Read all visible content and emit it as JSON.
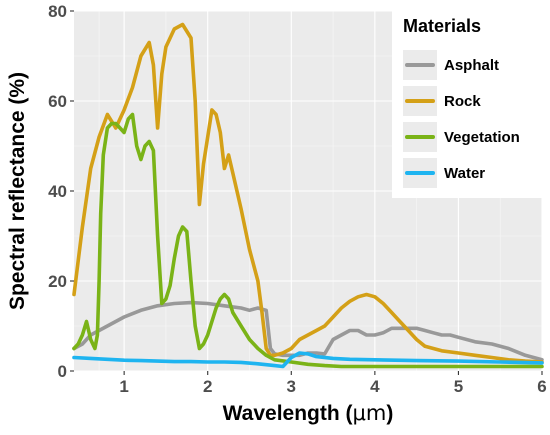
{
  "chart_data": {
    "type": "line",
    "title": "",
    "xlabel_prefix": "Wavelength (",
    "xlabel_unit": "μm",
    "xlabel_suffix": ")",
    "ylabel": "Spectral reflectance (%)",
    "xlim": [
      0.4,
      6
    ],
    "ylim": [
      0,
      80
    ],
    "x_ticks": [
      1,
      2,
      3,
      4,
      5,
      6
    ],
    "y_ticks": [
      0,
      20,
      40,
      60,
      80
    ],
    "grid": true,
    "background": "#ebebeb",
    "legend": {
      "title": "Materials",
      "position": "top-right"
    },
    "series": [
      {
        "name": "Asphalt",
        "color": "#999999",
        "x": [
          0.4,
          0.5,
          0.6,
          0.8,
          1.0,
          1.2,
          1.4,
          1.6,
          1.8,
          2.0,
          2.2,
          2.4,
          2.5,
          2.6,
          2.7,
          2.75,
          2.8,
          2.9,
          3.0,
          3.1,
          3.2,
          3.3,
          3.4,
          3.5,
          3.6,
          3.7,
          3.8,
          3.9,
          4.0,
          4.1,
          4.2,
          4.3,
          4.4,
          4.5,
          4.6,
          4.7,
          4.8,
          4.9,
          5.0,
          5.2,
          5.4,
          5.6,
          5.8,
          6.0
        ],
        "y": [
          5,
          6,
          8,
          10,
          12,
          13.5,
          14.5,
          15,
          15.2,
          15,
          14.5,
          14,
          13.5,
          14,
          13.5,
          5,
          3.8,
          3.5,
          3.5,
          3.5,
          4,
          4,
          3.8,
          7,
          8,
          9,
          9,
          8,
          8,
          8.5,
          9.5,
          9.5,
          9.5,
          9.5,
          9,
          8.5,
          8,
          8,
          7.5,
          6.5,
          6,
          5,
          3.5,
          2.5
        ]
      },
      {
        "name": "Rock",
        "color": "#d4a017",
        "x": [
          0.4,
          0.5,
          0.6,
          0.7,
          0.8,
          0.9,
          1.0,
          1.1,
          1.2,
          1.3,
          1.35,
          1.4,
          1.45,
          1.5,
          1.6,
          1.7,
          1.8,
          1.85,
          1.9,
          1.95,
          2.0,
          2.05,
          2.1,
          2.15,
          2.2,
          2.25,
          2.3,
          2.4,
          2.5,
          2.6,
          2.65,
          2.7,
          2.75,
          2.8,
          2.9,
          3.0,
          3.1,
          3.2,
          3.3,
          3.4,
          3.5,
          3.6,
          3.7,
          3.8,
          3.9,
          4.0,
          4.1,
          4.2,
          4.3,
          4.4,
          4.5,
          4.6,
          4.8,
          5.0,
          5.2,
          5.4,
          5.6,
          5.8,
          6.0
        ],
        "y": [
          17,
          32,
          45,
          52,
          57,
          54,
          58,
          63,
          70,
          73,
          68,
          54,
          66,
          72,
          76,
          77,
          74,
          60,
          37,
          46,
          52,
          58,
          57,
          53,
          45,
          48,
          44,
          36,
          27,
          20,
          13,
          5,
          3.5,
          3.5,
          4,
          5,
          7,
          8,
          9,
          10,
          12,
          14,
          15.5,
          16.5,
          17,
          16.5,
          15,
          13,
          11,
          9,
          7,
          5.5,
          4.5,
          4,
          3.5,
          3,
          2.5,
          2.2,
          2
        ]
      },
      {
        "name": "Vegetation",
        "color": "#7ab317",
        "x": [
          0.4,
          0.45,
          0.5,
          0.55,
          0.6,
          0.65,
          0.68,
          0.7,
          0.72,
          0.75,
          0.8,
          0.85,
          0.9,
          0.95,
          1.0,
          1.05,
          1.1,
          1.15,
          1.2,
          1.25,
          1.3,
          1.35,
          1.4,
          1.45,
          1.5,
          1.55,
          1.6,
          1.65,
          1.7,
          1.75,
          1.8,
          1.85,
          1.9,
          1.95,
          2.0,
          2.05,
          2.1,
          2.15,
          2.2,
          2.25,
          2.3,
          2.4,
          2.5,
          2.6,
          2.7,
          2.8,
          3.0,
          3.2,
          3.4,
          3.6,
          4.0,
          4.5,
          5.0,
          5.5,
          6.0
        ],
        "y": [
          5,
          6,
          8,
          11,
          7,
          5,
          8,
          20,
          35,
          48,
          54,
          55,
          55,
          54,
          53,
          56,
          57,
          50,
          47,
          50,
          51,
          49,
          30,
          15,
          16,
          19,
          25,
          30,
          32,
          31,
          20,
          10,
          5,
          6,
          8,
          11,
          14,
          16,
          17,
          16,
          13,
          10,
          7,
          5,
          3.5,
          2.5,
          2,
          1.5,
          1.2,
          1,
          1,
          1,
          1,
          1,
          1
        ]
      },
      {
        "name": "Water",
        "color": "#1eb4f0",
        "x": [
          0.4,
          0.6,
          0.8,
          1.0,
          1.2,
          1.4,
          1.6,
          1.8,
          2.0,
          2.2,
          2.4,
          2.6,
          2.8,
          2.9,
          3.0,
          3.1,
          3.2,
          3.3,
          3.5,
          3.7,
          4.0,
          4.5,
          5.0,
          5.5,
          6.0
        ],
        "y": [
          3,
          2.8,
          2.6,
          2.4,
          2.3,
          2.2,
          2.1,
          2.1,
          2.0,
          2.0,
          1.9,
          1.6,
          1.2,
          1.0,
          3.0,
          4.0,
          3.8,
          3.2,
          2.8,
          2.6,
          2.5,
          2.3,
          2.2,
          2.0,
          1.8
        ]
      }
    ]
  }
}
